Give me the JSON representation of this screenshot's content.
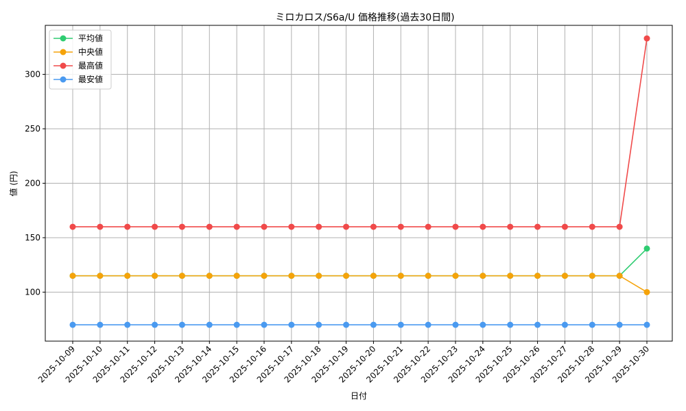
{
  "chart_data": {
    "type": "line",
    "title": "ミロカロス/S6a/U 価格推移(過去30日間)",
    "xlabel": "日付",
    "ylabel": "値 (円)",
    "ylim": [
      55,
      345
    ],
    "y_ticks": [
      100,
      150,
      200,
      250,
      300
    ],
    "grid": true,
    "legend_position": "top-left",
    "categories": [
      "2025-10-09",
      "2025-10-10",
      "2025-10-11",
      "2025-10-12",
      "2025-10-13",
      "2025-10-14",
      "2025-10-15",
      "2025-10-16",
      "2025-10-17",
      "2025-10-18",
      "2025-10-19",
      "2025-10-20",
      "2025-10-21",
      "2025-10-22",
      "2025-10-23",
      "2025-10-24",
      "2025-10-25",
      "2025-10-26",
      "2025-10-27",
      "2025-10-28",
      "2025-10-29",
      "2025-10-30"
    ],
    "series": [
      {
        "name": "平均値",
        "color": "#2ecc71",
        "values": [
          115,
          115,
          115,
          115,
          115,
          115,
          115,
          115,
          115,
          115,
          115,
          115,
          115,
          115,
          115,
          115,
          115,
          115,
          115,
          115,
          115,
          140
        ]
      },
      {
        "name": "中央値",
        "color": "#f5a30a",
        "values": [
          115,
          115,
          115,
          115,
          115,
          115,
          115,
          115,
          115,
          115,
          115,
          115,
          115,
          115,
          115,
          115,
          115,
          115,
          115,
          115,
          115,
          100
        ]
      },
      {
        "name": "最高値",
        "color": "#f04a4a",
        "values": [
          160,
          160,
          160,
          160,
          160,
          160,
          160,
          160,
          160,
          160,
          160,
          160,
          160,
          160,
          160,
          160,
          160,
          160,
          160,
          160,
          160,
          333
        ]
      },
      {
        "name": "最安値",
        "color": "#4a9af0",
        "values": [
          70,
          70,
          70,
          70,
          70,
          70,
          70,
          70,
          70,
          70,
          70,
          70,
          70,
          70,
          70,
          70,
          70,
          70,
          70,
          70,
          70,
          70
        ]
      }
    ]
  }
}
